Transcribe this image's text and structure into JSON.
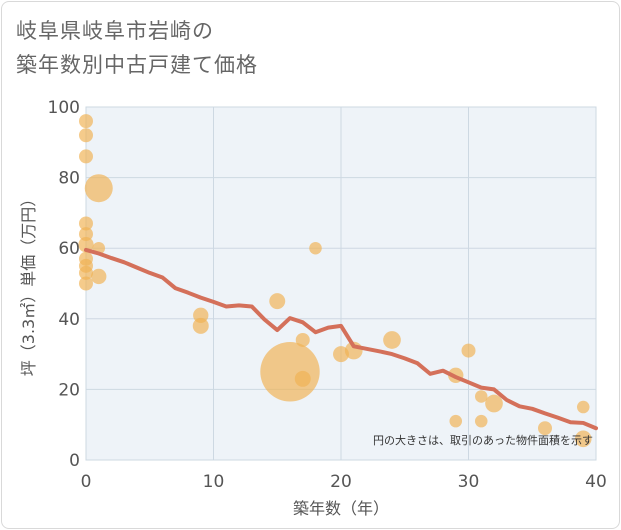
{
  "title_lines": [
    "岐阜県岐阜市岩崎の",
    "築年数別中古戸建て価格"
  ],
  "colors": {
    "bubble": "#f0b354",
    "line": "#d4705a",
    "grid": "#cdd8e2",
    "plot_bg": "#eef3f8"
  },
  "chart_data": {
    "type": "scatter",
    "title": "岐阜県岐阜市岩崎の築年数別中古戸建て価格",
    "xlabel": "築年数（年）",
    "ylabel": "坪（3.3㎡）単価（万円）",
    "xlim": [
      0,
      40
    ],
    "ylim": [
      0,
      100
    ],
    "xticks": [
      0,
      10,
      20,
      30,
      40
    ],
    "yticks": [
      0,
      20,
      40,
      60,
      80,
      100
    ],
    "grid": true,
    "note": "円の大きさは、取引のあった物件面積を示す",
    "points": [
      {
        "x": 0,
        "y": 96,
        "s": 1
      },
      {
        "x": 0,
        "y": 92,
        "s": 1
      },
      {
        "x": 0,
        "y": 86,
        "s": 1
      },
      {
        "x": 1,
        "y": 77,
        "s": 4
      },
      {
        "x": 0,
        "y": 67,
        "s": 1
      },
      {
        "x": 0,
        "y": 64,
        "s": 1
      },
      {
        "x": 0,
        "y": 61,
        "s": 1.2
      },
      {
        "x": 1,
        "y": 60,
        "s": 0.8
      },
      {
        "x": 0,
        "y": 57,
        "s": 1
      },
      {
        "x": 0,
        "y": 55,
        "s": 1
      },
      {
        "x": 0,
        "y": 53,
        "s": 1
      },
      {
        "x": 1,
        "y": 52,
        "s": 1.2
      },
      {
        "x": 0,
        "y": 50,
        "s": 1
      },
      {
        "x": 9,
        "y": 41,
        "s": 1.2
      },
      {
        "x": 9,
        "y": 38,
        "s": 1.3
      },
      {
        "x": 15,
        "y": 45,
        "s": 1.3
      },
      {
        "x": 16,
        "y": 25,
        "s": 18
      },
      {
        "x": 17,
        "y": 34,
        "s": 1
      },
      {
        "x": 17,
        "y": 23,
        "s": 1.3
      },
      {
        "x": 18,
        "y": 60,
        "s": 0.8
      },
      {
        "x": 20,
        "y": 30,
        "s": 1.3
      },
      {
        "x": 21,
        "y": 31,
        "s": 1.6
      },
      {
        "x": 24,
        "y": 34,
        "s": 1.6
      },
      {
        "x": 29,
        "y": 24,
        "s": 1.2
      },
      {
        "x": 29,
        "y": 11,
        "s": 0.8
      },
      {
        "x": 30,
        "y": 31,
        "s": 1
      },
      {
        "x": 31,
        "y": 18,
        "s": 0.8
      },
      {
        "x": 31,
        "y": 11,
        "s": 0.8
      },
      {
        "x": 32,
        "y": 16,
        "s": 1.6
      },
      {
        "x": 36,
        "y": 9,
        "s": 1
      },
      {
        "x": 39,
        "y": 15,
        "s": 0.8
      },
      {
        "x": 39,
        "y": 6,
        "s": 1.4
      }
    ],
    "trend": {
      "x": [
        0,
        1,
        2,
        3,
        4,
        5,
        6,
        7,
        8,
        9,
        10,
        11,
        12,
        13,
        14,
        15,
        16,
        17,
        18,
        19,
        20,
        21,
        22,
        23,
        24,
        25,
        26,
        27,
        28,
        29,
        30,
        31,
        32,
        33,
        34,
        35,
        36,
        37,
        38,
        39,
        40
      ],
      "y": [
        59.5,
        58.5,
        57.2,
        56,
        54.5,
        53,
        51.7,
        48.7,
        47.4,
        46,
        44.8,
        43.5,
        43.8,
        43.5,
        39.8,
        36.8,
        40.2,
        39,
        36.2,
        37.5,
        38,
        32.2,
        31.5,
        30.8,
        30,
        28.8,
        27.4,
        24.4,
        25.3,
        23.5,
        22,
        20.5,
        20,
        17,
        15.2,
        14.5,
        13.2,
        12,
        10.7,
        10.5,
        9
      ]
    }
  }
}
